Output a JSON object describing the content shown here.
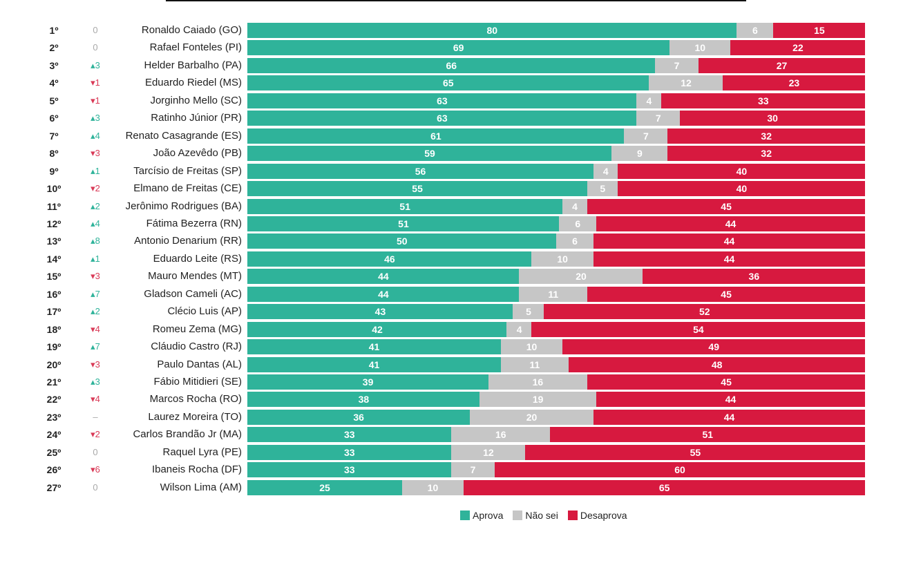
{
  "chart_data": {
    "type": "bar",
    "stacked": true,
    "orientation": "horizontal",
    "xlim": [
      0,
      100
    ],
    "colors": {
      "aprova": "#2fb39a",
      "nao_sei": "#c6c6c6",
      "desaprova": "#d7193f"
    },
    "legend": [
      {
        "key": "aprova",
        "label": "Aprova"
      },
      {
        "key": "nao_sei",
        "label": "Não sei"
      },
      {
        "key": "desaprova",
        "label": "Desaprova"
      }
    ],
    "rows": [
      {
        "rank": "1º",
        "change": "0",
        "dir": "flat",
        "name": "Ronaldo Caiado (GO)",
        "aprova": 80,
        "nao_sei": 6,
        "desaprova": 15
      },
      {
        "rank": "2º",
        "change": "0",
        "dir": "flat",
        "name": "Rafael Fonteles (PI)",
        "aprova": 69,
        "nao_sei": 10,
        "desaprova": 22
      },
      {
        "rank": "3º",
        "change": "3",
        "dir": "up",
        "name": "Helder Barbalho (PA)",
        "aprova": 66,
        "nao_sei": 7,
        "desaprova": 27
      },
      {
        "rank": "4º",
        "change": "1",
        "dir": "down",
        "name": "Eduardo Riedel (MS)",
        "aprova": 65,
        "nao_sei": 12,
        "desaprova": 23
      },
      {
        "rank": "5º",
        "change": "1",
        "dir": "down",
        "name": "Jorginho Mello (SC)",
        "aprova": 63,
        "nao_sei": 4,
        "desaprova": 33
      },
      {
        "rank": "6º",
        "change": "3",
        "dir": "up",
        "name": "Ratinho Júnior (PR)",
        "aprova": 63,
        "nao_sei": 7,
        "desaprova": 30
      },
      {
        "rank": "7º",
        "change": "4",
        "dir": "up",
        "name": "Renato Casagrande (ES)",
        "aprova": 61,
        "nao_sei": 7,
        "desaprova": 32
      },
      {
        "rank": "8º",
        "change": "3",
        "dir": "down",
        "name": "João Azevêdo (PB)",
        "aprova": 59,
        "nao_sei": 9,
        "desaprova": 32
      },
      {
        "rank": "9º",
        "change": "1",
        "dir": "up",
        "name": "Tarcísio de Freitas (SP)",
        "aprova": 56,
        "nao_sei": 4,
        "desaprova": 40
      },
      {
        "rank": "10º",
        "change": "2",
        "dir": "down",
        "name": "Elmano de Freitas (CE)",
        "aprova": 55,
        "nao_sei": 5,
        "desaprova": 40
      },
      {
        "rank": "11º",
        "change": "2",
        "dir": "up",
        "name": "Jerônimo Rodrigues (BA)",
        "aprova": 51,
        "nao_sei": 4,
        "desaprova": 45
      },
      {
        "rank": "12º",
        "change": "4",
        "dir": "up",
        "name": "Fátima Bezerra (RN)",
        "aprova": 51,
        "nao_sei": 6,
        "desaprova": 44
      },
      {
        "rank": "13º",
        "change": "8",
        "dir": "up",
        "name": "Antonio Denarium (RR)",
        "aprova": 50,
        "nao_sei": 6,
        "desaprova": 44
      },
      {
        "rank": "14º",
        "change": "1",
        "dir": "up",
        "name": "Eduardo Leite (RS)",
        "aprova": 46,
        "nao_sei": 10,
        "desaprova": 44
      },
      {
        "rank": "15º",
        "change": "3",
        "dir": "down",
        "name": "Mauro Mendes (MT)",
        "aprova": 44,
        "nao_sei": 20,
        "desaprova": 36
      },
      {
        "rank": "16º",
        "change": "7",
        "dir": "up",
        "name": "Gladson Cameli (AC)",
        "aprova": 44,
        "nao_sei": 11,
        "desaprova": 45
      },
      {
        "rank": "17º",
        "change": "2",
        "dir": "up",
        "name": "Clécio Luis (AP)",
        "aprova": 43,
        "nao_sei": 5,
        "desaprova": 52
      },
      {
        "rank": "18º",
        "change": "4",
        "dir": "down",
        "name": "Romeu Zema (MG)",
        "aprova": 42,
        "nao_sei": 4,
        "desaprova": 54
      },
      {
        "rank": "19º",
        "change": "7",
        "dir": "up",
        "name": "Cláudio Castro (RJ)",
        "aprova": 41,
        "nao_sei": 10,
        "desaprova": 49
      },
      {
        "rank": "20º",
        "change": "3",
        "dir": "down",
        "name": "Paulo Dantas (AL)",
        "aprova": 41,
        "nao_sei": 11,
        "desaprova": 48
      },
      {
        "rank": "21º",
        "change": "3",
        "dir": "up",
        "name": "Fábio Mitidieri (SE)",
        "aprova": 39,
        "nao_sei": 16,
        "desaprova": 45
      },
      {
        "rank": "22º",
        "change": "4",
        "dir": "down",
        "name": "Marcos Rocha (RO)",
        "aprova": 38,
        "nao_sei": 19,
        "desaprova": 44
      },
      {
        "rank": "23º",
        "change": "–",
        "dir": "flat",
        "name": "Laurez Moreira (TO)",
        "aprova": 36,
        "nao_sei": 20,
        "desaprova": 44
      },
      {
        "rank": "24º",
        "change": "2",
        "dir": "down",
        "name": "Carlos Brandão Jr (MA)",
        "aprova": 33,
        "nao_sei": 16,
        "desaprova": 51
      },
      {
        "rank": "25º",
        "change": "0",
        "dir": "flat",
        "name": "Raquel Lyra (PE)",
        "aprova": 33,
        "nao_sei": 12,
        "desaprova": 55
      },
      {
        "rank": "26º",
        "change": "6",
        "dir": "down",
        "name": "Ibaneis Rocha (DF)",
        "aprova": 33,
        "nao_sei": 7,
        "desaprova": 60
      },
      {
        "rank": "27º",
        "change": "0",
        "dir": "flat",
        "name": "Wilson Lima (AM)",
        "aprova": 25,
        "nao_sei": 10,
        "desaprova": 65
      }
    ]
  }
}
